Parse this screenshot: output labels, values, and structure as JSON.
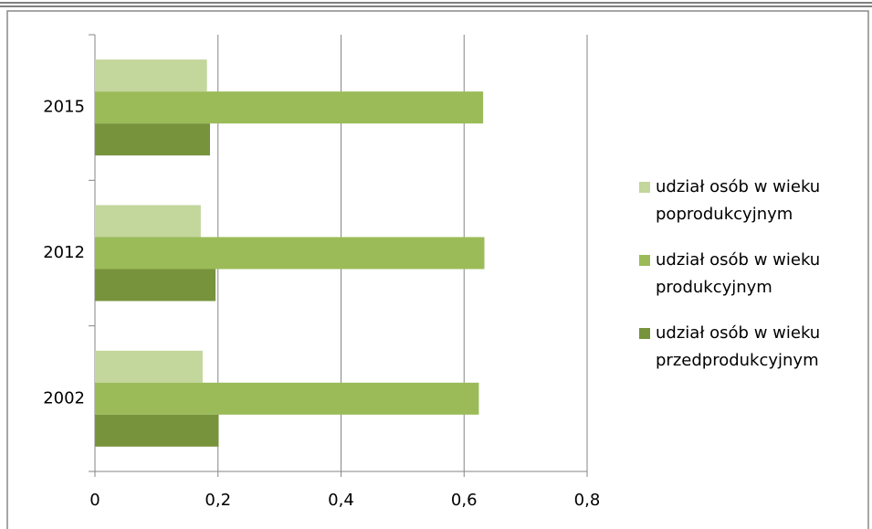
{
  "chart_data": {
    "type": "barh",
    "categories": [
      "2002",
      "2012",
      "2015"
    ],
    "series": [
      {
        "name": "udział osób w wieku poprodukcyjnym",
        "color": "#c3d69b",
        "values": [
          0.175,
          0.172,
          0.182
        ]
      },
      {
        "name": "udział osób w wieku produkcyjnym",
        "color": "#9bbb59",
        "values": [
          0.624,
          0.633,
          0.631
        ]
      },
      {
        "name": "udział osób w wieku przedprodukcyjnym",
        "color": "#77933c",
        "values": [
          0.201,
          0.196,
          0.187
        ]
      }
    ],
    "xlim": [
      0,
      0.8
    ],
    "xticks": [
      0,
      {
        "value": 0.2,
        "label": "0,2"
      },
      {
        "value": 0.4,
        "label": "0,4"
      },
      {
        "value": 0.6,
        "label": "0,6"
      },
      {
        "value": 0.8,
        "label": "0,8"
      }
    ],
    "grid": true,
    "legend": "right"
  }
}
